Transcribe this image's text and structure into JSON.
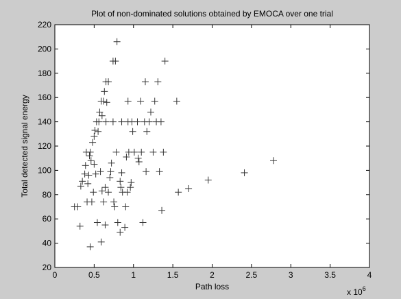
{
  "chart_data": {
    "type": "scatter",
    "title": "Plot of non-dominated solutions obtained by EMOCA over one trial",
    "xlabel": "Path loss",
    "ylabel": "Total detected signal energy",
    "x_multiplier_label": "x 10",
    "x_multiplier_exponent": "6",
    "xlim": [
      0,
      4
    ],
    "ylim": [
      20,
      220
    ],
    "xticks": [
      "0",
      "0.5",
      "1",
      "1.5",
      "2",
      "2.5",
      "3",
      "3.5",
      "4"
    ],
    "yticks": [
      "20",
      "40",
      "60",
      "80",
      "100",
      "120",
      "140",
      "160",
      "180",
      "200",
      "220"
    ],
    "marker": "+",
    "grid": false,
    "colors": {
      "figure_bg": "#cccccc",
      "axes_bg": "#ffffff",
      "marker": "#333333"
    },
    "series": [
      {
        "points": [
          [
            0.25,
            70
          ],
          [
            0.29,
            70
          ],
          [
            0.32,
            54
          ],
          [
            0.33,
            87
          ],
          [
            0.35,
            91
          ],
          [
            0.38,
            97
          ],
          [
            0.39,
            104
          ],
          [
            0.4,
            115
          ],
          [
            0.41,
            74
          ],
          [
            0.42,
            89
          ],
          [
            0.43,
            96
          ],
          [
            0.44,
            112
          ],
          [
            0.45,
            37
          ],
          [
            0.45,
            115
          ],
          [
            0.46,
            108
          ],
          [
            0.47,
            74
          ],
          [
            0.48,
            123
          ],
          [
            0.49,
            82
          ],
          [
            0.5,
            105
          ],
          [
            0.5,
            128
          ],
          [
            0.51,
            133
          ],
          [
            0.52,
            97
          ],
          [
            0.53,
            140
          ],
          [
            0.54,
            57
          ],
          [
            0.55,
            132
          ],
          [
            0.56,
            140
          ],
          [
            0.57,
            148
          ],
          [
            0.58,
            99
          ],
          [
            0.59,
            41
          ],
          [
            0.59,
            157
          ],
          [
            0.6,
            83
          ],
          [
            0.6,
            145
          ],
          [
            0.62,
            74
          ],
          [
            0.62,
            157
          ],
          [
            0.63,
            165
          ],
          [
            0.64,
            55
          ],
          [
            0.64,
            86
          ],
          [
            0.65,
            140
          ],
          [
            0.65,
            173
          ],
          [
            0.66,
            156
          ],
          [
            0.68,
            173
          ],
          [
            0.68,
            82
          ],
          [
            0.7,
            94
          ],
          [
            0.71,
            99
          ],
          [
            0.72,
            106
          ],
          [
            0.74,
            140
          ],
          [
            0.74,
            190
          ],
          [
            0.75,
            74
          ],
          [
            0.76,
            70
          ],
          [
            0.77,
            190
          ],
          [
            0.78,
            115
          ],
          [
            0.79,
            206
          ],
          [
            0.8,
            57
          ],
          [
            0.83,
            49
          ],
          [
            0.83,
            91
          ],
          [
            0.84,
            86
          ],
          [
            0.85,
            98
          ],
          [
            0.85,
            140
          ],
          [
            0.86,
            82
          ],
          [
            0.89,
            53
          ],
          [
            0.9,
            70
          ],
          [
            0.91,
            111
          ],
          [
            0.92,
            82
          ],
          [
            0.93,
            157
          ],
          [
            0.93,
            140
          ],
          [
            0.94,
            115
          ],
          [
            0.96,
            86
          ],
          [
            0.97,
            90
          ],
          [
            0.98,
            140
          ],
          [
            0.99,
            132
          ],
          [
            1.01,
            115
          ],
          [
            1.05,
            140
          ],
          [
            1.06,
            110
          ],
          [
            1.07,
            107
          ],
          [
            1.09,
            157
          ],
          [
            1.1,
            115
          ],
          [
            1.12,
            57
          ],
          [
            1.14,
            140
          ],
          [
            1.15,
            173
          ],
          [
            1.16,
            99
          ],
          [
            1.17,
            132
          ],
          [
            1.2,
            140
          ],
          [
            1.22,
            148
          ],
          [
            1.25,
            115
          ],
          [
            1.27,
            157
          ],
          [
            1.29,
            140
          ],
          [
            1.31,
            173
          ],
          [
            1.33,
            99
          ],
          [
            1.35,
            140
          ],
          [
            1.36,
            67
          ],
          [
            1.38,
            115
          ],
          [
            1.4,
            190
          ],
          [
            1.55,
            157
          ],
          [
            1.57,
            82
          ],
          [
            1.7,
            85
          ],
          [
            1.95,
            92
          ],
          [
            2.41,
            98
          ],
          [
            2.78,
            108
          ]
        ]
      }
    ]
  }
}
